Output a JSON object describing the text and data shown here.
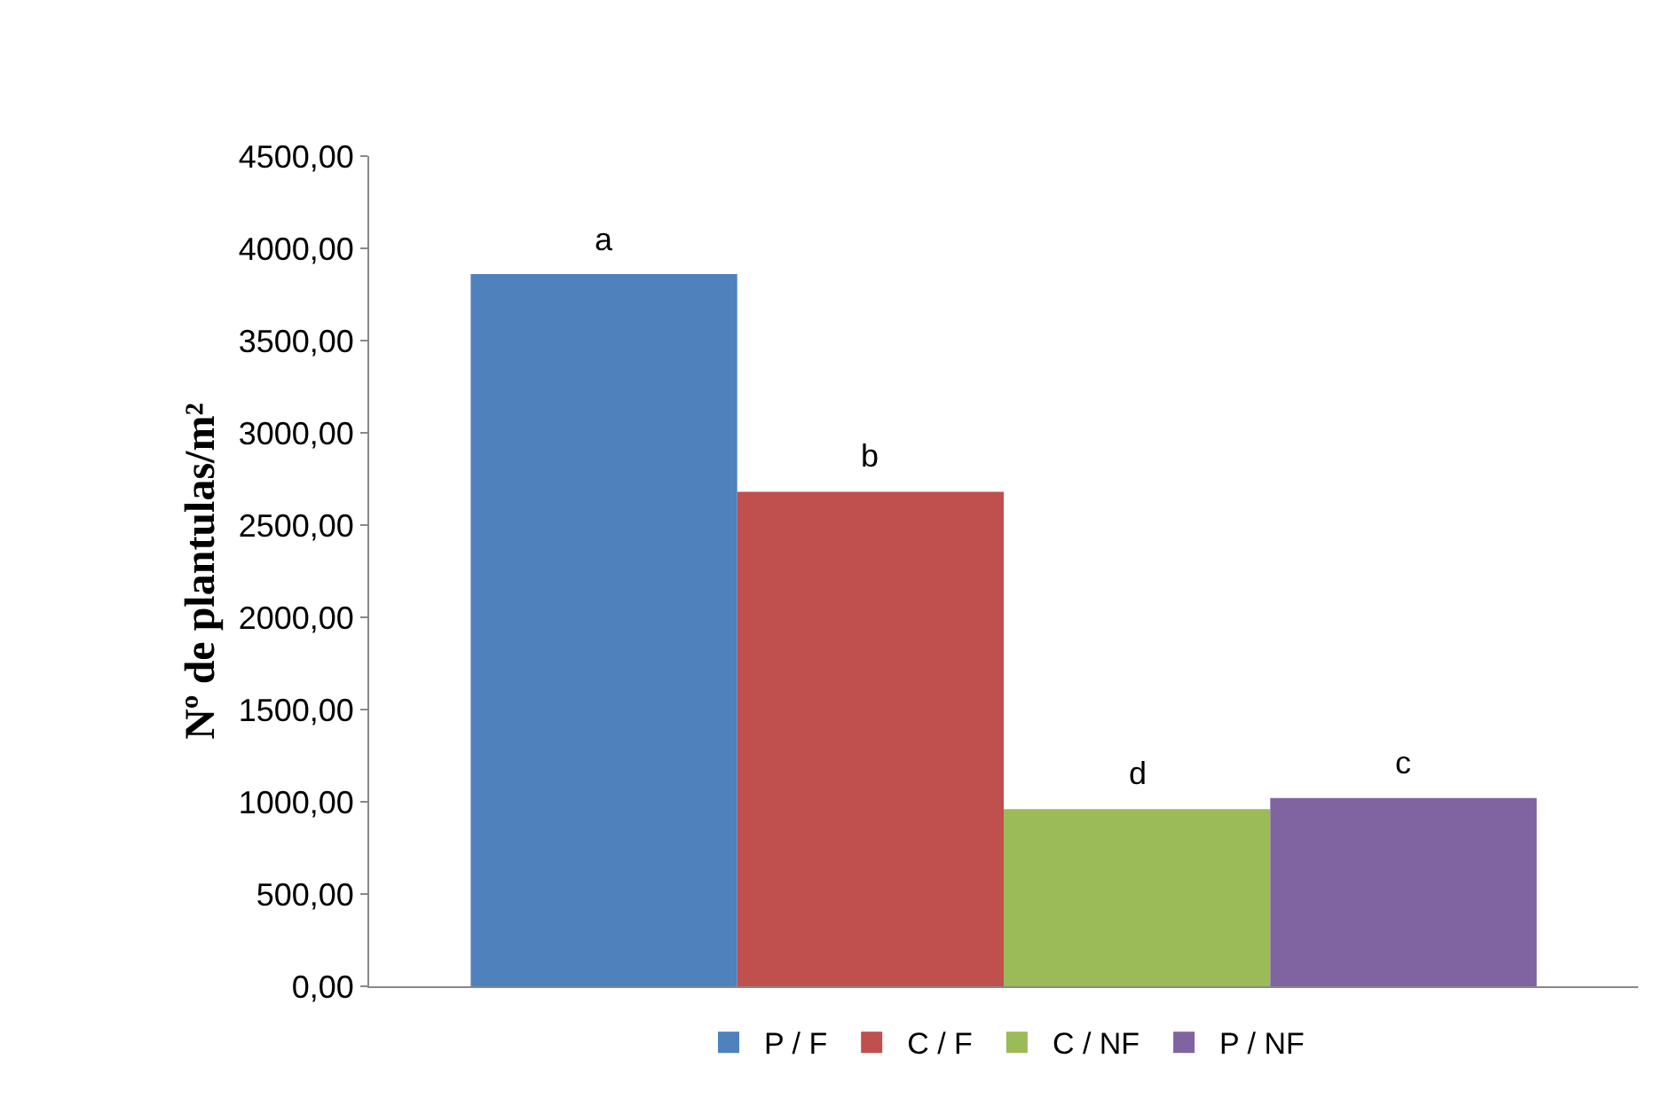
{
  "chart_data": {
    "type": "bar",
    "ylabel": "Nº de plantulas/m²",
    "categories": [
      null
    ],
    "series": [
      {
        "name": "P / F",
        "color": "#4f81bd",
        "values": [
          3860
        ]
      },
      {
        "name": "C / F",
        "color": "#c0504d",
        "values": [
          2680
        ]
      },
      {
        "name": "C / NF",
        "color": "#9bbb59",
        "values": [
          960
        ]
      },
      {
        "name": "P / NF",
        "color": "#8064a2",
        "values": [
          1020
        ]
      }
    ],
    "annotations": [
      "a",
      "b",
      "d",
      "c"
    ],
    "ylim": [
      0,
      4500
    ],
    "yticks": [
      {
        "value": 0,
        "label": "0,00"
      },
      {
        "value": 500,
        "label": "500,00"
      },
      {
        "value": 1000,
        "label": "1000,00"
      },
      {
        "value": 1500,
        "label": "1500,00"
      },
      {
        "value": 2000,
        "label": "2000,00"
      },
      {
        "value": 2500,
        "label": "2500,00"
      },
      {
        "value": 3000,
        "label": "3000,00"
      },
      {
        "value": 3500,
        "label": "3500,00"
      },
      {
        "value": 4000,
        "label": "4000,00"
      },
      {
        "value": 4500,
        "label": "4500,00"
      }
    ],
    "legend": "bottom"
  }
}
